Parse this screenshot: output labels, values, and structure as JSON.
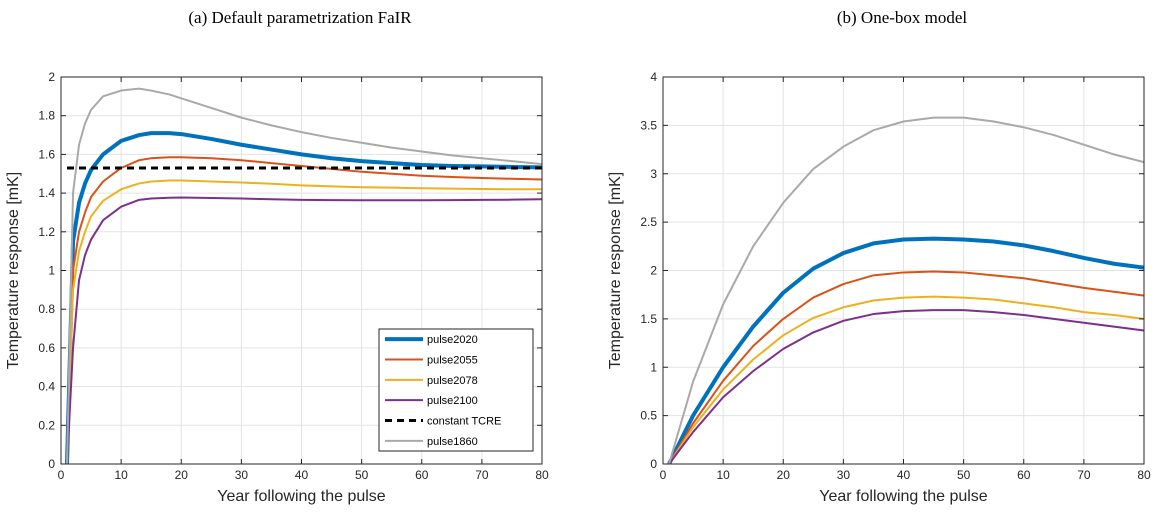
{
  "panel_a_title": "(a) Default parametrization FaIR",
  "panel_b_title": "(b) One-box model",
  "chart_data": [
    {
      "type": "line",
      "title": "(a) Default parametrization FaIR",
      "xlabel": "Year following the pulse",
      "ylabel": "Temperature response [mK]",
      "xlim": [
        0,
        80
      ],
      "ylim": [
        0,
        2
      ],
      "xticks": [
        0,
        10,
        20,
        30,
        40,
        50,
        60,
        70,
        80
      ],
      "yticks": [
        0,
        0.2,
        0.4,
        0.6,
        0.8,
        1,
        1.2,
        1.4,
        1.6,
        1.8,
        2
      ],
      "xtick_labels": [
        "0",
        "10",
        "20",
        "30",
        "40",
        "50",
        "60",
        "70",
        "80"
      ],
      "ytick_labels": [
        "0",
        "0.2",
        "0.4",
        "0.6",
        "0.8",
        "1",
        "1.2",
        "1.4",
        "1.6",
        "1.8",
        "2"
      ],
      "grid": true,
      "legend_position": "bottom-right",
      "x": [
        1,
        2,
        3,
        4,
        5,
        7,
        10,
        13,
        15,
        18,
        20,
        25,
        30,
        35,
        40,
        45,
        50,
        55,
        60,
        65,
        70,
        75,
        80
      ],
      "series": [
        {
          "name": "pulse2020",
          "color": "#0072BD",
          "width": 4,
          "dash": "",
          "values": [
            0,
            1.15,
            1.35,
            1.45,
            1.52,
            1.6,
            1.67,
            1.7,
            1.71,
            1.71,
            1.705,
            1.68,
            1.65,
            1.625,
            1.6,
            1.58,
            1.565,
            1.555,
            1.545,
            1.54,
            1.538,
            1.535,
            1.533
          ]
        },
        {
          "name": "pulse2055",
          "color": "#D95319",
          "width": 2,
          "dash": "",
          "values": [
            0,
            1.0,
            1.2,
            1.3,
            1.38,
            1.46,
            1.53,
            1.57,
            1.58,
            1.585,
            1.585,
            1.58,
            1.57,
            1.555,
            1.54,
            1.525,
            1.51,
            1.5,
            1.49,
            1.483,
            1.478,
            1.474,
            1.47
          ]
        },
        {
          "name": "pulse2078",
          "color": "#EDB120",
          "width": 2,
          "dash": "",
          "values": [
            0,
            0.9,
            1.1,
            1.2,
            1.28,
            1.36,
            1.42,
            1.45,
            1.46,
            1.465,
            1.465,
            1.46,
            1.455,
            1.448,
            1.44,
            1.435,
            1.43,
            1.428,
            1.425,
            1.423,
            1.421,
            1.42,
            1.42
          ]
        },
        {
          "name": "pulse2100",
          "color": "#7E2F8E",
          "width": 2,
          "dash": "",
          "values": [
            0,
            0.6,
            0.95,
            1.08,
            1.16,
            1.26,
            1.33,
            1.365,
            1.372,
            1.376,
            1.377,
            1.375,
            1.372,
            1.368,
            1.365,
            1.364,
            1.363,
            1.363,
            1.363,
            1.364,
            1.365,
            1.366,
            1.368
          ]
        },
        {
          "name": "constant TCRE",
          "color": "#000000",
          "width": 3,
          "dash": "7,5",
          "values": [
            1.53,
            1.53,
            1.53,
            1.53,
            1.53,
            1.53,
            1.53,
            1.53,
            1.53,
            1.53,
            1.53,
            1.53,
            1.53,
            1.53,
            1.53,
            1.53,
            1.53,
            1.53,
            1.53,
            1.53,
            1.53,
            1.53,
            1.53
          ]
        },
        {
          "name": "pulse1860",
          "color": "#A9A9A9",
          "width": 2,
          "dash": "",
          "values": [
            0,
            1.4,
            1.65,
            1.76,
            1.83,
            1.9,
            1.93,
            1.94,
            1.93,
            1.91,
            1.89,
            1.84,
            1.79,
            1.75,
            1.715,
            1.685,
            1.66,
            1.635,
            1.615,
            1.595,
            1.58,
            1.565,
            1.55
          ]
        }
      ]
    },
    {
      "type": "line",
      "title": "(b) One-box model",
      "xlabel": "Year following the pulse",
      "ylabel": "Temperature response [mK]",
      "xlim": [
        0,
        80
      ],
      "ylim": [
        0,
        4
      ],
      "xticks": [
        0,
        10,
        20,
        30,
        40,
        50,
        60,
        70,
        80
      ],
      "yticks": [
        0,
        0.5,
        1,
        1.5,
        2,
        2.5,
        3,
        3.5,
        4
      ],
      "xtick_labels": [
        "0",
        "10",
        "20",
        "30",
        "40",
        "50",
        "60",
        "70",
        "80"
      ],
      "ytick_labels": [
        "0",
        "0.5",
        "1",
        "1.5",
        "2",
        "2.5",
        "3",
        "3.5",
        "4"
      ],
      "grid": true,
      "x": [
        1,
        5,
        10,
        15,
        20,
        25,
        30,
        35,
        40,
        45,
        50,
        55,
        60,
        65,
        70,
        75,
        80
      ],
      "series": [
        {
          "name": "pulse2020",
          "color": "#0072BD",
          "width": 4,
          "values": [
            0,
            0.5,
            1.0,
            1.42,
            1.77,
            2.02,
            2.18,
            2.28,
            2.32,
            2.33,
            2.32,
            2.3,
            2.26,
            2.2,
            2.13,
            2.07,
            2.03
          ]
        },
        {
          "name": "pulse2055",
          "color": "#D95319",
          "width": 2,
          "values": [
            0,
            0.42,
            0.86,
            1.22,
            1.5,
            1.72,
            1.86,
            1.95,
            1.98,
            1.99,
            1.98,
            1.95,
            1.92,
            1.87,
            1.82,
            1.78,
            1.74
          ]
        },
        {
          "name": "pulse2078",
          "color": "#EDB120",
          "width": 2,
          "values": [
            0,
            0.38,
            0.77,
            1.08,
            1.33,
            1.51,
            1.62,
            1.69,
            1.72,
            1.73,
            1.72,
            1.7,
            1.66,
            1.62,
            1.57,
            1.54,
            1.5
          ]
        },
        {
          "name": "pulse2100",
          "color": "#7E2F8E",
          "width": 2,
          "values": [
            0,
            0.33,
            0.69,
            0.96,
            1.19,
            1.36,
            1.48,
            1.55,
            1.58,
            1.59,
            1.59,
            1.57,
            1.54,
            1.5,
            1.46,
            1.42,
            1.38
          ]
        },
        {
          "name": "pulse1860",
          "color": "#A9A9A9",
          "width": 2,
          "values": [
            0,
            0.85,
            1.65,
            2.25,
            2.7,
            3.05,
            3.28,
            3.45,
            3.54,
            3.58,
            3.58,
            3.54,
            3.48,
            3.4,
            3.3,
            3.2,
            3.12
          ]
        }
      ]
    }
  ]
}
